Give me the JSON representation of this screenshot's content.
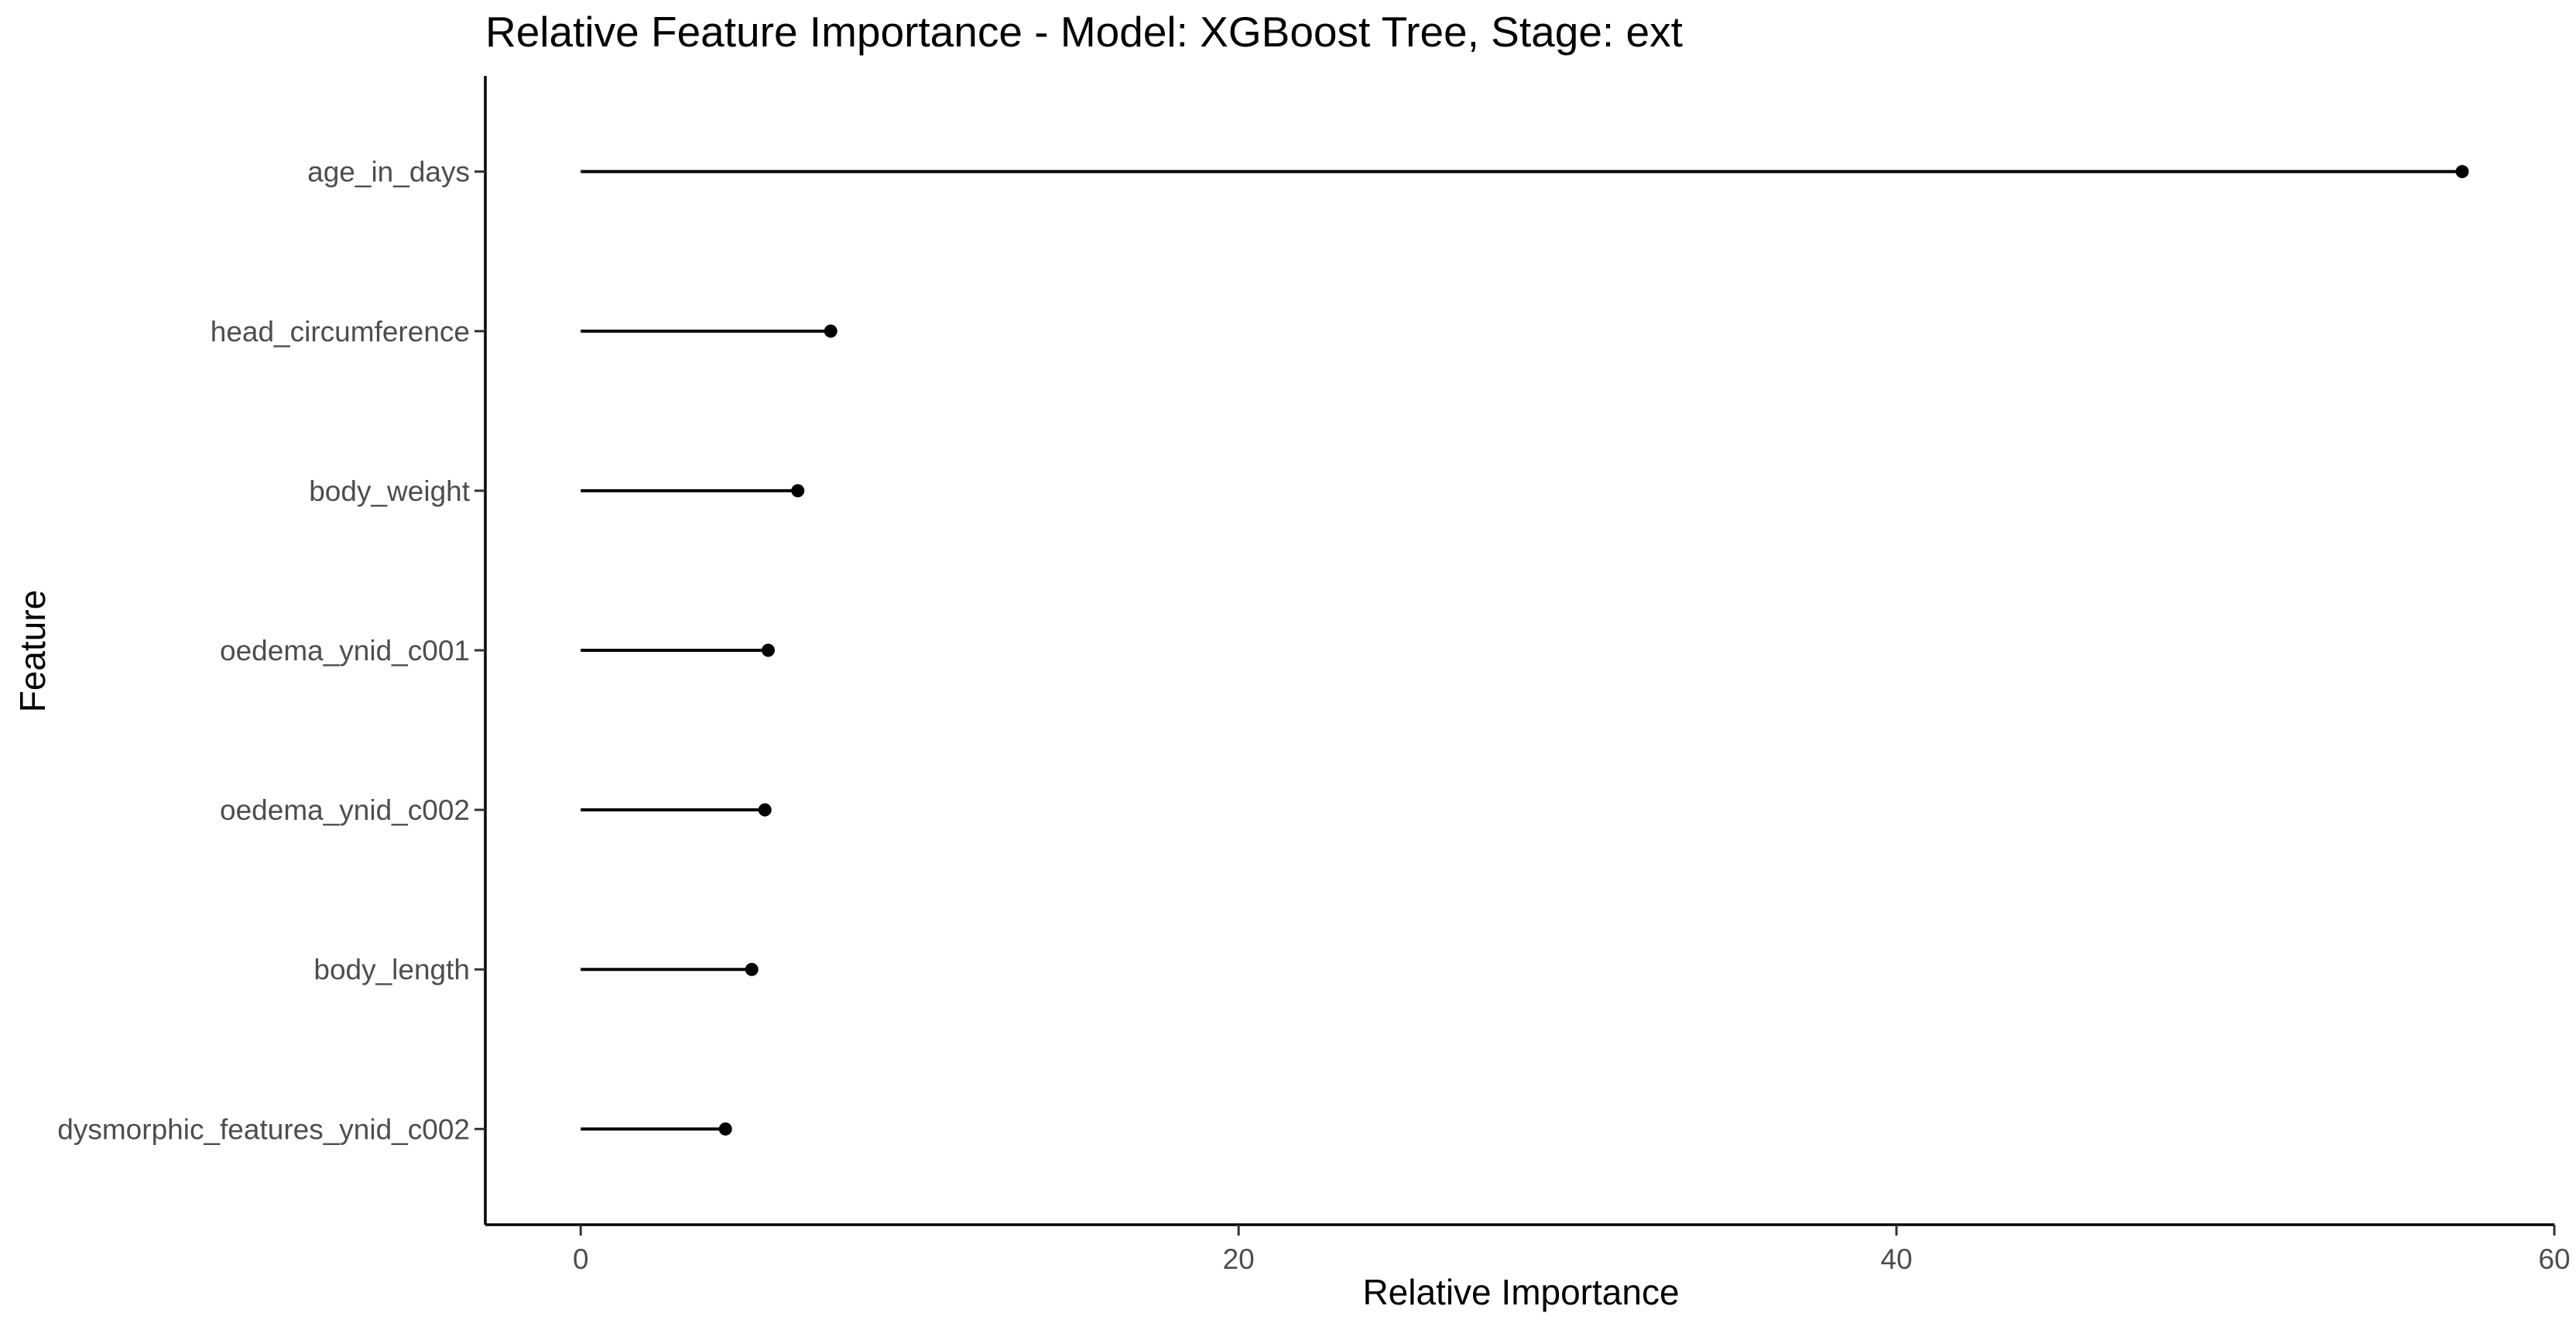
{
  "chart_data": {
    "type": "lollipop",
    "title": "Relative Feature Importance - Model: XGBoost Tree, Stage: ext",
    "xlabel": "Relative Importance",
    "ylabel": "Feature",
    "xlim": [
      -2.9,
      60
    ],
    "xticks": [
      0,
      20,
      40,
      60
    ],
    "grid": false,
    "legend": "none",
    "categories": [
      "age_in_days",
      "head_circumference",
      "body_weight",
      "oedema_ynid_c001",
      "oedema_ynid_c002",
      "body_length",
      "dysmorphic_features_ynid_c002"
    ],
    "values": [
      57.2,
      7.6,
      6.6,
      5.7,
      5.6,
      5.2,
      4.4
    ],
    "color": "#000000"
  }
}
